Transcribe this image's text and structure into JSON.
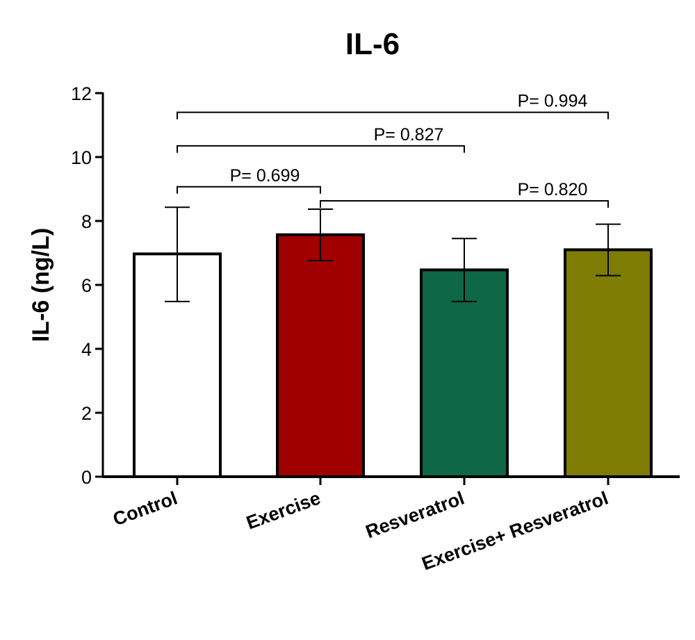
{
  "chart_data": {
    "type": "bar",
    "title": "IL-6",
    "xlabel": "",
    "ylabel": "IL-6  (ng/L)",
    "ylim": [
      0,
      12
    ],
    "yticks": [
      "0",
      "2",
      "4",
      "6",
      "8",
      "10",
      "12"
    ],
    "grid": false,
    "categories": [
      "Control",
      "Exercise",
      "Resveratrol",
      "Exercise+ Resveratrol"
    ],
    "series": [
      {
        "values": [
          6.97,
          7.57,
          6.47,
          7.1
        ],
        "error_low": [
          5.48,
          6.76,
          5.48,
          6.29
        ],
        "error_high": [
          8.43,
          8.37,
          7.45,
          7.9
        ]
      }
    ],
    "colors": [
      "#FFFFFF",
      "#A00000",
      "#0E6845",
      "#7E7C03"
    ],
    "comparisons": [
      {
        "from": "Control",
        "to": "Exercise+ Resveratrol",
        "label": "P= 0.994",
        "y": 11.4
      },
      {
        "from": "Control",
        "to": "Resveratrol",
        "label": "P= 0.827",
        "y": 10.35
      },
      {
        "from": "Control",
        "to": "Exercise",
        "label": "P= 0.699",
        "y": 9.07
      },
      {
        "from": "Exercise",
        "to": "Exercise+ Resveratrol",
        "label": "P= 0.820",
        "y": 8.63
      }
    ]
  }
}
